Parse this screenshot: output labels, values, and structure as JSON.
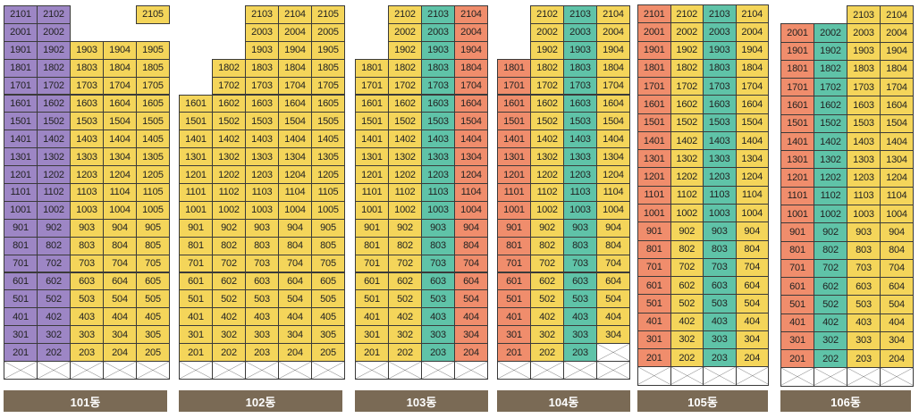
{
  "colors": {
    "yellow": "#f4d55a",
    "purple": "#9d86c5",
    "teal": "#5fc3a8",
    "orange": "#f08d6c",
    "label_bg": "#7a6a55"
  },
  "buildings": [
    {
      "label": "101동",
      "lines": [
        {
          "line": "01",
          "color": "purple",
          "top": 21
        },
        {
          "line": "02",
          "color": "purple",
          "top": 21
        },
        {
          "line": "03",
          "color": "yellow",
          "top": 19
        },
        {
          "line": "04",
          "color": "yellow",
          "top": 19
        },
        {
          "line": "05",
          "color": "yellow",
          "top": 21,
          "missing": [
            20
          ]
        }
      ]
    },
    {
      "label": "102동",
      "lines": [
        {
          "line": "01",
          "color": "yellow",
          "top": 16
        },
        {
          "line": "02",
          "color": "yellow",
          "top": 18
        },
        {
          "line": "03",
          "color": "yellow",
          "top": 21
        },
        {
          "line": "04",
          "color": "yellow",
          "top": 21
        },
        {
          "line": "05",
          "color": "yellow",
          "top": 21
        }
      ]
    },
    {
      "label": "103동",
      "lines": [
        {
          "line": "01",
          "color": "yellow",
          "top": 18
        },
        {
          "line": "02",
          "color": "yellow",
          "top": 21
        },
        {
          "line": "03",
          "color": "teal",
          "top": 21
        },
        {
          "line": "04",
          "color": "orange",
          "top": 21
        }
      ]
    },
    {
      "label": "104동",
      "lines": [
        {
          "line": "01",
          "color": "orange",
          "top": 18
        },
        {
          "line": "02",
          "color": "yellow",
          "top": 21
        },
        {
          "line": "03",
          "color": "teal",
          "top": 21
        },
        {
          "line": "04",
          "color": "yellow",
          "top": 21,
          "missing": [
            2
          ]
        }
      ]
    },
    {
      "label": "105동",
      "lines": [
        {
          "line": "01",
          "color": "orange",
          "top": 21
        },
        {
          "line": "02",
          "color": "yellow",
          "top": 21
        },
        {
          "line": "03",
          "color": "teal",
          "top": 21
        },
        {
          "line": "04",
          "color": "yellow",
          "top": 21
        }
      ]
    },
    {
      "label": "106동",
      "lines": [
        {
          "line": "01",
          "color": "orange",
          "top": 20
        },
        {
          "line": "02",
          "color": "teal",
          "top": 20
        },
        {
          "line": "03",
          "color": "yellow",
          "top": 21
        },
        {
          "line": "04",
          "color": "yellow",
          "top": 21
        }
      ]
    }
  ]
}
